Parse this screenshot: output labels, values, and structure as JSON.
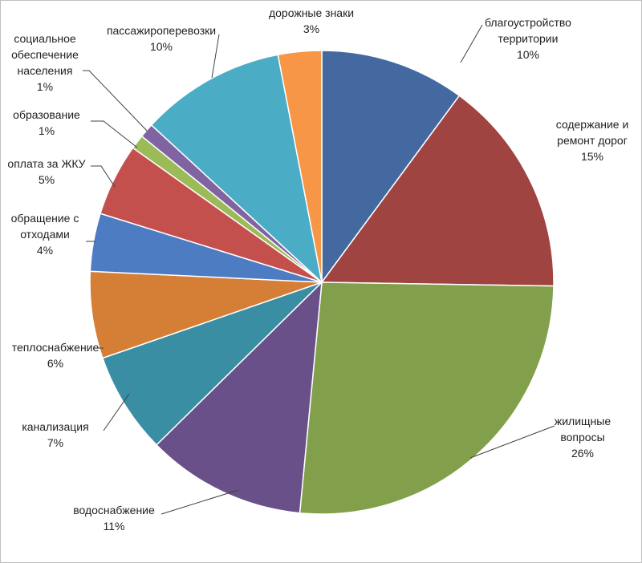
{
  "chart_data": {
    "type": "pie",
    "title": "",
    "start_angle_deg": 0,
    "direction": "clockwise",
    "slices": [
      {
        "label": [
          "благоустройство",
          "территории"
        ],
        "value": 10,
        "percent_label": "10%",
        "color": "#4369A0"
      },
      {
        "label": [
          "содержание и",
          "ремонт дорог"
        ],
        "value": 15,
        "percent_label": "15%",
        "color": "#A04442"
      },
      {
        "label": [
          "жилищные",
          "вопросы"
        ],
        "value": 26,
        "percent_label": "26%",
        "color": "#82A04C"
      },
      {
        "label": [
          "водоснабжение"
        ],
        "value": 11,
        "percent_label": "11%",
        "color": "#6A5088"
      },
      {
        "label": [
          "канализация"
        ],
        "value": 7,
        "percent_label": "7%",
        "color": "#3A8EA4"
      },
      {
        "label": [
          "теплоснабжение"
        ],
        "value": 6,
        "percent_label": "6%",
        "color": "#D47E36"
      },
      {
        "label": [
          "обращение с",
          "отходами"
        ],
        "value": 4,
        "percent_label": "4%",
        "color": "#4E7CC3"
      },
      {
        "label": [
          "оплата за ЖКУ"
        ],
        "value": 5,
        "percent_label": "5%",
        "color": "#C4504E"
      },
      {
        "label": [
          "образование"
        ],
        "value": 1,
        "percent_label": "1%",
        "color": "#9BBB59"
      },
      {
        "label": [
          "социальное",
          "обеспечение",
          "населения"
        ],
        "value": 1,
        "percent_label": "1%",
        "color": "#8064A2"
      },
      {
        "label": [
          "пассажироперевозки"
        ],
        "value": 10,
        "percent_label": "10%",
        "color": "#4BACC6"
      },
      {
        "label": [
          "дорожные знаки"
        ],
        "value": 3,
        "percent_label": "3%",
        "color": "#F79646"
      }
    ],
    "leader_line_color": "#404040",
    "slice_border_color": "#ffffff"
  }
}
